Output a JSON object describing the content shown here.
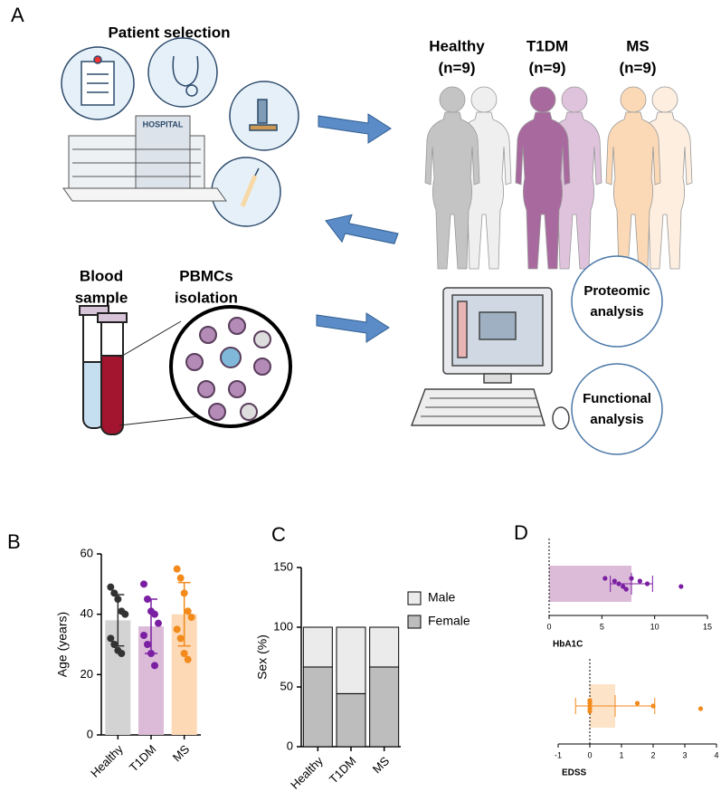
{
  "panel_labels": [
    "A",
    "B",
    "C",
    "D"
  ],
  "diagram": {
    "patient_selection": "Patient selection",
    "hospital": "HOSPITAL",
    "groups": [
      {
        "name": "Healthy",
        "n": "(n=9)"
      },
      {
        "name": "T1DM",
        "n": "(n=9)"
      },
      {
        "name": "MS",
        "n": "(n=9)"
      }
    ],
    "blood_sample": [
      "Blood",
      "sample"
    ],
    "pbmcs": [
      "PBMCs",
      "isolation"
    ],
    "proteomic": [
      "Proteomic",
      "analysis"
    ],
    "functional": [
      "Functional",
      "analysis"
    ]
  },
  "chart_data": [
    {
      "type": "bar",
      "y_label": "Age (years)",
      "categories": [
        "Healthy",
        "T1DM",
        "MS"
      ],
      "values": [
        38,
        36,
        40
      ],
      "errors": [
        8.5,
        9,
        10.5
      ],
      "colors": [
        "#d3d3d3",
        "#dcbbd9",
        "#fdd9b5"
      ],
      "point_colors": [
        "#333333",
        "#7b1fa2",
        "#f28a1c"
      ],
      "points": [
        [
          49,
          47,
          45,
          41,
          40,
          32,
          30,
          28,
          27
        ],
        [
          50,
          45,
          41,
          40,
          37,
          33,
          30,
          27,
          23
        ],
        [
          55,
          52,
          47,
          41,
          39,
          35,
          32,
          27,
          25
        ]
      ],
      "ylim": [
        0,
        60
      ],
      "yticks": [
        0,
        20,
        40,
        60
      ]
    },
    {
      "type": "stacked_bar",
      "y_label": "Sex (%)",
      "categories": [
        "Healthy",
        "T1DM",
        "MS"
      ],
      "series": [
        {
          "name": "Female",
          "color": "#bdbdbd",
          "values": [
            66.7,
            44.4,
            66.7
          ]
        },
        {
          "name": "Male",
          "color": "#ebebeb",
          "values": [
            33.3,
            55.6,
            33.3
          ]
        }
      ],
      "ylim": [
        0,
        150
      ],
      "yticks": [
        0,
        50,
        100,
        150
      ]
    },
    {
      "type": "hbar",
      "x_label": "HbA1C",
      "value": 7.8,
      "error": 2.0,
      "color": "#dcbbd9",
      "point_color": "#7b1fa2",
      "points": [
        5.3,
        6.2,
        6.6,
        7,
        7.3,
        7.8,
        8.6,
        9.3,
        12.5
      ],
      "xlim": [
        0,
        15
      ],
      "xticks": [
        0,
        5,
        10,
        15
      ]
    },
    {
      "type": "hbar",
      "x_label": "EDSS",
      "value": 0.8,
      "error": 1.25,
      "color": "#fde3c8",
      "point_color": "#f28a1c",
      "points": [
        0,
        0,
        0,
        0,
        0,
        0,
        1.5,
        2,
        3.5
      ],
      "xlim": [
        -1,
        4
      ],
      "xticks": [
        -1,
        0,
        1,
        2,
        3,
        4
      ]
    }
  ]
}
